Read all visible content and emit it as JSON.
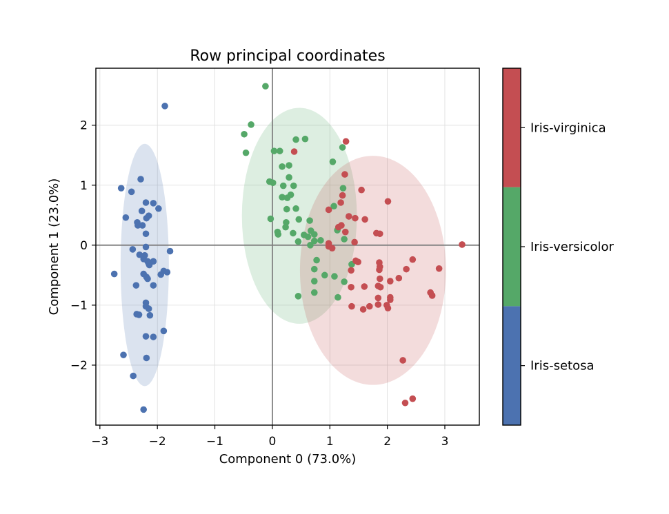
{
  "chart_data": {
    "type": "scatter",
    "title": "Row principal coordinates",
    "xlabel": "Component 0 (73.0%)",
    "ylabel": "Component 1 (23.0%)",
    "xlim": [
      -3.07,
      3.6
    ],
    "ylim": [
      -3.0,
      2.95
    ],
    "x_ticks": [
      -3,
      -2,
      -1,
      0,
      1,
      2,
      3
    ],
    "x_tick_labels": [
      "−3",
      "−2",
      "−1",
      "0",
      "1",
      "2",
      "3"
    ],
    "y_ticks": [
      -2,
      -1,
      0,
      1,
      2
    ],
    "y_tick_labels": [
      "−2",
      "−1",
      "0",
      "1",
      "2"
    ],
    "grid": true,
    "reference_lines": {
      "x": 0,
      "y": 0,
      "color": "#808080"
    },
    "colorbar": {
      "labels": [
        "Iris-setosa",
        "Iris-versicolor",
        "Iris-virginica"
      ],
      "colors": [
        "#4C72B0",
        "#55A868",
        "#C44E52"
      ]
    },
    "series": [
      {
        "name": "Iris-setosa",
        "color": "#4C72B0",
        "ellipse": {
          "cx": -2.22,
          "cy": -0.33,
          "rx": 0.42,
          "ry": 2.02
        },
        "points": [
          [
            -1.87,
            2.32
          ],
          [
            -2.63,
            0.95
          ],
          [
            -2.29,
            1.1
          ],
          [
            -2.45,
            0.89
          ],
          [
            -2.27,
            0.57
          ],
          [
            -2.2,
            0.71
          ],
          [
            -2.07,
            0.7
          ],
          [
            -1.98,
            0.61
          ],
          [
            -2.55,
            0.46
          ],
          [
            -2.15,
            0.49
          ],
          [
            -2.19,
            0.45
          ],
          [
            -2.35,
            0.38
          ],
          [
            -2.34,
            0.33
          ],
          [
            -2.26,
            0.33
          ],
          [
            -2.2,
            0.19
          ],
          [
            -2.2,
            -0.03
          ],
          [
            -2.43,
            -0.07
          ],
          [
            -2.31,
            -0.16
          ],
          [
            -2.22,
            -0.17
          ],
          [
            -2.24,
            -0.23
          ],
          [
            -2.17,
            -0.27
          ],
          [
            -2.15,
            -0.31
          ],
          [
            -2.14,
            -0.33
          ],
          [
            -2.07,
            -0.27
          ],
          [
            -1.78,
            -0.1
          ],
          [
            -2.75,
            -0.48
          ],
          [
            -2.24,
            -0.48
          ],
          [
            -2.19,
            -0.53
          ],
          [
            -2.17,
            -0.56
          ],
          [
            -1.94,
            -0.49
          ],
          [
            -1.89,
            -0.43
          ],
          [
            -1.83,
            -0.45
          ],
          [
            -2.37,
            -0.67
          ],
          [
            -2.07,
            -0.67
          ],
          [
            -2.2,
            -0.96
          ],
          [
            -2.2,
            -1.02
          ],
          [
            -2.15,
            -1.06
          ],
          [
            -2.36,
            -1.15
          ],
          [
            -2.32,
            -1.16
          ],
          [
            -2.13,
            -1.17
          ],
          [
            -1.89,
            -1.43
          ],
          [
            -2.2,
            -1.52
          ],
          [
            -2.07,
            -1.53
          ],
          [
            -2.59,
            -1.83
          ],
          [
            -2.19,
            -1.88
          ],
          [
            -2.42,
            -2.18
          ],
          [
            -2.24,
            -2.74
          ]
        ]
      },
      {
        "name": "Iris-versicolor",
        "color": "#55A868",
        "ellipse": {
          "cx": 0.47,
          "cy": 0.49,
          "rx": 1.0,
          "ry": 1.8
        },
        "points": [
          [
            -0.12,
            2.65
          ],
          [
            -0.37,
            2.01
          ],
          [
            -0.49,
            1.85
          ],
          [
            -0.46,
            1.54
          ],
          [
            0.03,
            1.57
          ],
          [
            0.13,
            1.57
          ],
          [
            0.41,
            1.76
          ],
          [
            0.57,
            1.77
          ],
          [
            1.22,
            1.63
          ],
          [
            1.05,
            1.39
          ],
          [
            0.17,
            1.31
          ],
          [
            0.29,
            1.33
          ],
          [
            0.29,
            1.13
          ],
          [
            0.19,
            0.99
          ],
          [
            0.37,
            0.99
          ],
          [
            1.23,
            0.95
          ],
          [
            -0.05,
            1.06
          ],
          [
            0.01,
            1.04
          ],
          [
            0.17,
            0.8
          ],
          [
            0.26,
            0.79
          ],
          [
            0.32,
            0.84
          ],
          [
            1.07,
            0.65
          ],
          [
            0.25,
            0.6
          ],
          [
            0.41,
            0.61
          ],
          [
            -0.03,
            0.44
          ],
          [
            0.46,
            0.43
          ],
          [
            0.65,
            0.41
          ],
          [
            0.24,
            0.38
          ],
          [
            0.23,
            0.3
          ],
          [
            0.09,
            0.22
          ],
          [
            0.1,
            0.18
          ],
          [
            0.67,
            0.24
          ],
          [
            0.36,
            0.2
          ],
          [
            0.55,
            0.17
          ],
          [
            1.13,
            0.25
          ],
          [
            0.73,
            0.18
          ],
          [
            0.73,
            0.07
          ],
          [
            0.66,
            0.0
          ],
          [
            0.45,
            0.06
          ],
          [
            0.84,
            0.08
          ],
          [
            1.25,
            0.1
          ],
          [
            0.62,
            0.14
          ],
          [
            0.77,
            -0.25
          ],
          [
            0.73,
            -0.4
          ],
          [
            0.91,
            -0.5
          ],
          [
            1.08,
            -0.52
          ],
          [
            0.73,
            -0.6
          ],
          [
            1.25,
            -0.61
          ],
          [
            1.38,
            -0.32
          ],
          [
            0.73,
            -0.79
          ],
          [
            0.45,
            -0.85
          ],
          [
            1.14,
            -0.87
          ]
        ]
      },
      {
        "name": "Iris-virginica",
        "color": "#C44E52",
        "ellipse": {
          "cx": 1.75,
          "cy": -0.42,
          "rx": 1.27,
          "ry": 1.91
        },
        "points": [
          [
            1.28,
            1.73
          ],
          [
            0.38,
            1.56
          ],
          [
            1.26,
            1.18
          ],
          [
            1.55,
            0.92
          ],
          [
            1.22,
            0.83
          ],
          [
            1.19,
            0.71
          ],
          [
            2.01,
            0.73
          ],
          [
            0.98,
            0.59
          ],
          [
            1.33,
            0.48
          ],
          [
            1.44,
            0.45
          ],
          [
            1.61,
            0.43
          ],
          [
            1.2,
            0.33
          ],
          [
            1.15,
            0.3
          ],
          [
            1.27,
            0.22
          ],
          [
            1.81,
            0.2
          ],
          [
            1.87,
            0.19
          ],
          [
            1.43,
            0.05
          ],
          [
            0.98,
            0.03
          ],
          [
            0.98,
            -0.02
          ],
          [
            1.04,
            -0.05
          ],
          [
            3.3,
            0.01
          ],
          [
            1.86,
            -0.29
          ],
          [
            2.44,
            -0.24
          ],
          [
            1.87,
            -0.36
          ],
          [
            2.33,
            -0.4
          ],
          [
            1.86,
            -0.41
          ],
          [
            1.45,
            -0.26
          ],
          [
            1.49,
            -0.28
          ],
          [
            1.37,
            -0.42
          ],
          [
            2.9,
            -0.39
          ],
          [
            1.87,
            -0.56
          ],
          [
            2.05,
            -0.6
          ],
          [
            2.2,
            -0.55
          ],
          [
            1.37,
            -0.7
          ],
          [
            1.6,
            -0.69
          ],
          [
            1.84,
            -0.68
          ],
          [
            1.88,
            -0.7
          ],
          [
            2.75,
            -0.79
          ],
          [
            2.78,
            -0.84
          ],
          [
            1.84,
            -0.88
          ],
          [
            2.05,
            -0.87
          ],
          [
            2.05,
            -0.91
          ],
          [
            1.38,
            -1.02
          ],
          [
            1.69,
            -1.02
          ],
          [
            1.84,
            -0.99
          ],
          [
            1.99,
            -1.0
          ],
          [
            2.01,
            -1.05
          ],
          [
            1.58,
            -1.07
          ],
          [
            2.27,
            -1.92
          ],
          [
            2.44,
            -2.56
          ],
          [
            2.31,
            -2.63
          ]
        ]
      }
    ]
  }
}
